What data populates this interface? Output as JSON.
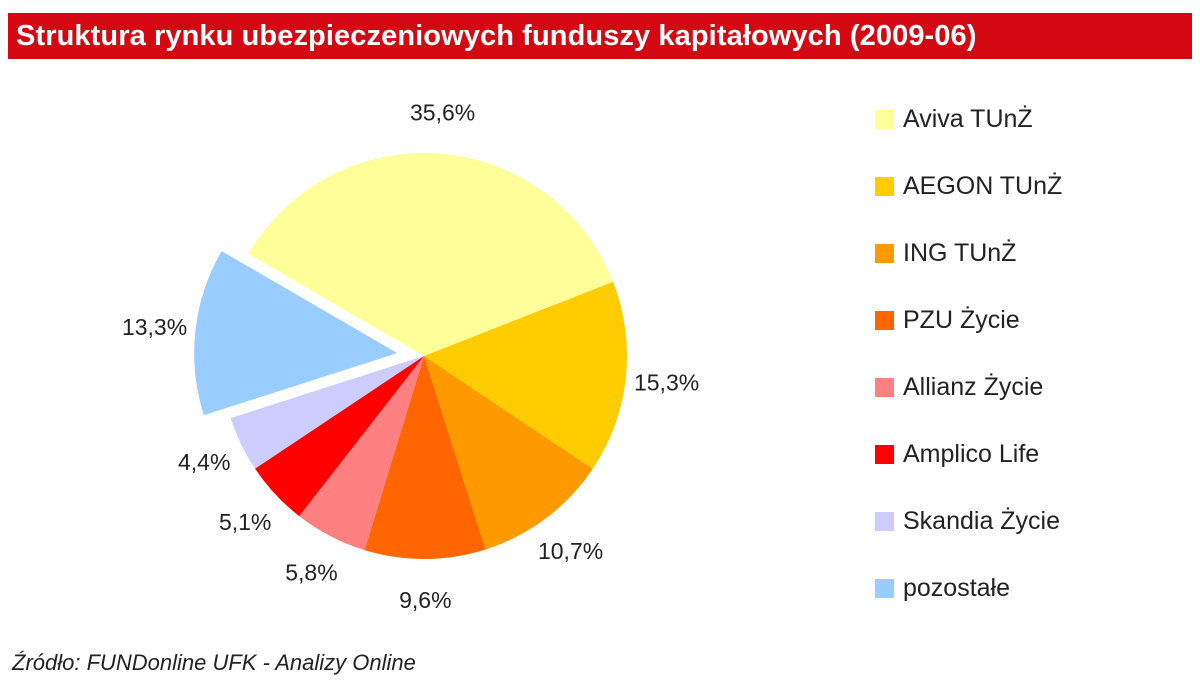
{
  "chart_data": {
    "type": "pie",
    "title": "Struktura rynku ubezpieczeniowych funduszy kapitałowych (2009-06)",
    "source": "Źródło: FUNDonline UFK - Analizy Online",
    "legend_position": "right",
    "exploded": [
      "pozostałe"
    ],
    "slices": [
      {
        "label": "Aviva TUnŻ",
        "value": 35.6,
        "display": "35,6%",
        "color": "#ffff99"
      },
      {
        "label": "AEGON TUnŻ",
        "value": 15.3,
        "display": "15,3%",
        "color": "#ffcc00"
      },
      {
        "label": "ING TUnŻ",
        "value": 10.7,
        "display": "10,7%",
        "color": "#ff9900"
      },
      {
        "label": "PZU Życie",
        "value": 9.6,
        "display": "9,6%",
        "color": "#ff6600"
      },
      {
        "label": "Allianz Życie",
        "value": 5.8,
        "display": "5,8%",
        "color": "#ff8080"
      },
      {
        "label": "Amplico Life",
        "value": 5.1,
        "display": "5,1%",
        "color": "#ff0000"
      },
      {
        "label": "Skandia Życie",
        "value": 4.4,
        "display": "4,4%",
        "color": "#ccccff"
      },
      {
        "label": "pozostałe",
        "value": 13.3,
        "display": "13,3%",
        "color": "#99ccff"
      }
    ]
  }
}
